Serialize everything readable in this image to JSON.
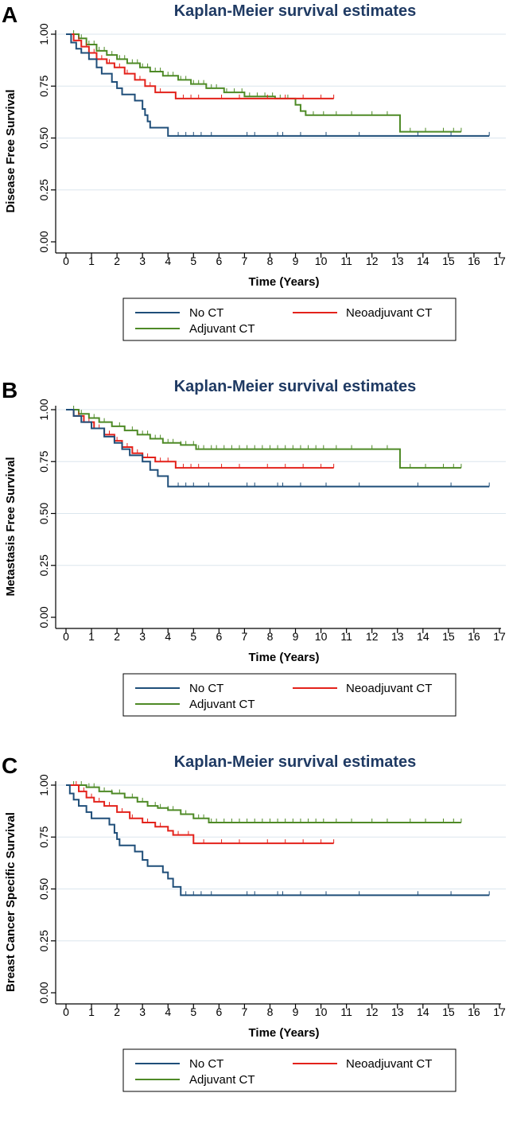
{
  "figure_labels": [
    "A",
    "B",
    "C"
  ],
  "legend_entries": [
    "No CT",
    "Neoadjuvant CT",
    "Adjuvant CT"
  ],
  "colors": {
    "no_ct": "#1f4e79",
    "neoadjuvant_ct": "#e3221b",
    "adjuvant_ct": "#4e8a26",
    "grid": "#dbe6ee",
    "axis": "#000000"
  },
  "chart_data": [
    {
      "type": "line",
      "panel": "A",
      "title": "Kaplan-Meier survival estimates",
      "xlabel": "Time (Years)",
      "ylabel": "Disease Free Survival",
      "xlim": [
        0,
        17
      ],
      "ylim": [
        0,
        1
      ],
      "xticks": [
        "0",
        "1",
        "2",
        "3",
        "4",
        "5",
        "6",
        "7",
        "8",
        "9",
        "10",
        "11",
        "12",
        "13",
        "14",
        "15",
        "16",
        "17"
      ],
      "yticks": [
        "0.00",
        "0.25",
        "0.50",
        "0.75",
        "1.00"
      ],
      "grid": true,
      "legend": "bottom",
      "series": [
        {
          "name": "No CT",
          "color": "#1f4e79",
          "steps": [
            [
              0,
              1.0
            ],
            [
              0.2,
              0.96
            ],
            [
              0.4,
              0.93
            ],
            [
              0.6,
              0.91
            ],
            [
              0.9,
              0.88
            ],
            [
              1.2,
              0.84
            ],
            [
              1.4,
              0.81
            ],
            [
              1.8,
              0.77
            ],
            [
              2.0,
              0.74
            ],
            [
              2.2,
              0.71
            ],
            [
              2.7,
              0.68
            ],
            [
              3.0,
              0.64
            ],
            [
              3.1,
              0.61
            ],
            [
              3.2,
              0.58
            ],
            [
              3.3,
              0.55
            ],
            [
              4.0,
              0.51
            ],
            [
              16.6,
              0.51
            ]
          ],
          "censored": [
            4.4,
            4.7,
            5.0,
            5.3,
            5.7,
            7.1,
            7.4,
            8.3,
            8.5,
            9.2,
            10.2,
            11.5,
            13.8,
            15.1,
            16.6
          ]
        },
        {
          "name": "Neoadjuvant CT",
          "color": "#e3221b",
          "steps": [
            [
              0,
              1.0
            ],
            [
              0.3,
              0.97
            ],
            [
              0.6,
              0.94
            ],
            [
              0.9,
              0.91
            ],
            [
              1.2,
              0.88
            ],
            [
              1.6,
              0.86
            ],
            [
              1.9,
              0.84
            ],
            [
              2.3,
              0.81
            ],
            [
              2.7,
              0.78
            ],
            [
              3.1,
              0.75
            ],
            [
              3.5,
              0.72
            ],
            [
              4.3,
              0.69
            ],
            [
              10.5,
              0.69
            ]
          ],
          "censored": [
            0.5,
            0.8,
            1.1,
            1.4,
            1.7,
            2.1,
            2.4,
            2.9,
            3.3,
            3.7,
            4.6,
            4.9,
            5.2,
            6.1,
            6.8,
            7.9,
            8.6,
            9.3,
            10.0,
            10.5
          ]
        },
        {
          "name": "Adjuvant CT",
          "color": "#4e8a26",
          "steps": [
            [
              0,
              1.0
            ],
            [
              0.5,
              0.98
            ],
            [
              0.8,
              0.95
            ],
            [
              1.2,
              0.92
            ],
            [
              1.6,
              0.9
            ],
            [
              2.0,
              0.88
            ],
            [
              2.4,
              0.86
            ],
            [
              2.9,
              0.84
            ],
            [
              3.3,
              0.82
            ],
            [
              3.8,
              0.8
            ],
            [
              4.4,
              0.78
            ],
            [
              4.9,
              0.76
            ],
            [
              5.5,
              0.74
            ],
            [
              6.2,
              0.72
            ],
            [
              7.0,
              0.7
            ],
            [
              8.2,
              0.69
            ],
            [
              9.0,
              0.66
            ],
            [
              9.2,
              0.63
            ],
            [
              9.4,
              0.61
            ],
            [
              13.1,
              0.53
            ],
            [
              15.5,
              0.53
            ]
          ],
          "censored": [
            0.3,
            0.6,
            0.9,
            1.1,
            1.3,
            1.5,
            1.8,
            2.1,
            2.3,
            2.6,
            2.8,
            3.0,
            3.2,
            3.5,
            3.7,
            4.0,
            4.2,
            4.5,
            4.7,
            5.0,
            5.2,
            5.4,
            5.7,
            5.9,
            6.3,
            6.6,
            6.9,
            7.2,
            7.5,
            7.8,
            8.1,
            8.4,
            8.7,
            9.7,
            10.1,
            10.6,
            11.2,
            12.0,
            12.6,
            13.5,
            14.1,
            14.8,
            15.2,
            15.5
          ]
        }
      ]
    },
    {
      "type": "line",
      "panel": "B",
      "title": "Kaplan-Meier survival estimates",
      "xlabel": "Time (Years)",
      "ylabel": "Metastasis Free Survival",
      "xlim": [
        0,
        17
      ],
      "ylim": [
        0,
        1
      ],
      "xticks": [
        "0",
        "1",
        "2",
        "3",
        "4",
        "5",
        "6",
        "7",
        "8",
        "9",
        "10",
        "11",
        "12",
        "13",
        "14",
        "15",
        "16",
        "17"
      ],
      "yticks": [
        "0.00",
        "0.25",
        "0.50",
        "0.75",
        "1.00"
      ],
      "grid": true,
      "legend": "bottom",
      "series": [
        {
          "name": "No CT",
          "color": "#1f4e79",
          "steps": [
            [
              0,
              1.0
            ],
            [
              0.3,
              0.97
            ],
            [
              0.6,
              0.94
            ],
            [
              1.0,
              0.91
            ],
            [
              1.5,
              0.87
            ],
            [
              1.9,
              0.84
            ],
            [
              2.2,
              0.81
            ],
            [
              2.5,
              0.78
            ],
            [
              3.0,
              0.75
            ],
            [
              3.3,
              0.71
            ],
            [
              3.6,
              0.68
            ],
            [
              4.0,
              0.63
            ],
            [
              16.6,
              0.63
            ]
          ],
          "censored": [
            4.4,
            4.7,
            5.0,
            5.6,
            7.1,
            7.4,
            8.3,
            8.5,
            9.2,
            10.2,
            11.5,
            13.8,
            15.1,
            16.6
          ]
        },
        {
          "name": "Neoadjuvant CT",
          "color": "#e3221b",
          "steps": [
            [
              0,
              1.0
            ],
            [
              0.3,
              0.97
            ],
            [
              0.7,
              0.94
            ],
            [
              1.1,
              0.91
            ],
            [
              1.5,
              0.88
            ],
            [
              1.9,
              0.85
            ],
            [
              2.2,
              0.82
            ],
            [
              2.6,
              0.79
            ],
            [
              3.0,
              0.77
            ],
            [
              3.5,
              0.75
            ],
            [
              4.3,
              0.72
            ],
            [
              10.5,
              0.72
            ]
          ],
          "censored": [
            0.5,
            0.9,
            1.3,
            1.7,
            2.0,
            2.4,
            2.8,
            3.2,
            3.7,
            4.0,
            4.6,
            4.9,
            5.2,
            6.1,
            6.8,
            7.9,
            8.6,
            9.3,
            10.0,
            10.5
          ]
        },
        {
          "name": "Adjuvant CT",
          "color": "#4e8a26",
          "steps": [
            [
              0,
              1.0
            ],
            [
              0.5,
              0.98
            ],
            [
              0.9,
              0.96
            ],
            [
              1.3,
              0.94
            ],
            [
              1.8,
              0.92
            ],
            [
              2.3,
              0.9
            ],
            [
              2.8,
              0.88
            ],
            [
              3.3,
              0.86
            ],
            [
              3.8,
              0.84
            ],
            [
              4.5,
              0.83
            ],
            [
              5.1,
              0.81
            ],
            [
              13.1,
              0.72
            ],
            [
              15.5,
              0.72
            ]
          ],
          "censored": [
            0.3,
            0.6,
            0.9,
            1.1,
            1.3,
            1.5,
            1.8,
            2.1,
            2.3,
            2.6,
            2.8,
            3.0,
            3.2,
            3.5,
            3.7,
            4.0,
            4.2,
            4.5,
            4.7,
            5.0,
            5.2,
            5.4,
            5.7,
            5.9,
            6.2,
            6.5,
            6.8,
            7.1,
            7.4,
            7.7,
            8.0,
            8.3,
            8.6,
            8.9,
            9.2,
            9.5,
            9.8,
            10.1,
            10.6,
            11.2,
            12.0,
            12.6,
            13.5,
            14.1,
            14.8,
            15.2,
            15.5
          ]
        }
      ]
    },
    {
      "type": "line",
      "panel": "C",
      "title": "Kaplan-Meier survival estimates",
      "xlabel": "Time (Years)",
      "ylabel": "Breast Cancer Specific Survival",
      "xlim": [
        0,
        17
      ],
      "ylim": [
        0,
        1
      ],
      "xticks": [
        "0",
        "1",
        "2",
        "3",
        "4",
        "5",
        "6",
        "7",
        "8",
        "9",
        "10",
        "11",
        "12",
        "13",
        "14",
        "15",
        "16",
        "17"
      ],
      "yticks": [
        "0.00",
        "0.25",
        "0.50",
        "0.75",
        "1.00"
      ],
      "grid": true,
      "legend": "bottom",
      "series": [
        {
          "name": "No CT",
          "color": "#1f4e79",
          "steps": [
            [
              0,
              1.0
            ],
            [
              0.15,
              0.96
            ],
            [
              0.3,
              0.93
            ],
            [
              0.5,
              0.9
            ],
            [
              0.8,
              0.87
            ],
            [
              1.0,
              0.84
            ],
            [
              1.7,
              0.81
            ],
            [
              1.9,
              0.77
            ],
            [
              2.0,
              0.74
            ],
            [
              2.1,
              0.71
            ],
            [
              2.7,
              0.68
            ],
            [
              3.0,
              0.64
            ],
            [
              3.2,
              0.61
            ],
            [
              3.8,
              0.58
            ],
            [
              4.0,
              0.55
            ],
            [
              4.2,
              0.51
            ],
            [
              4.5,
              0.47
            ],
            [
              16.6,
              0.47
            ]
          ],
          "censored": [
            4.7,
            5.0,
            5.3,
            5.7,
            7.1,
            7.4,
            8.3,
            8.5,
            9.2,
            10.2,
            11.5,
            13.8,
            15.1,
            16.6
          ]
        },
        {
          "name": "Neoadjuvant CT",
          "color": "#e3221b",
          "steps": [
            [
              0,
              1.0
            ],
            [
              0.5,
              0.97
            ],
            [
              0.8,
              0.94
            ],
            [
              1.1,
              0.92
            ],
            [
              1.5,
              0.9
            ],
            [
              2.0,
              0.87
            ],
            [
              2.5,
              0.84
            ],
            [
              3.0,
              0.82
            ],
            [
              3.5,
              0.8
            ],
            [
              4.0,
              0.78
            ],
            [
              4.2,
              0.76
            ],
            [
              5.0,
              0.72
            ],
            [
              10.5,
              0.72
            ]
          ],
          "censored": [
            0.4,
            0.7,
            1.0,
            1.3,
            1.7,
            2.2,
            2.6,
            3.2,
            3.7,
            4.4,
            4.8,
            5.4,
            6.1,
            6.8,
            7.9,
            8.6,
            9.3,
            10.0,
            10.5
          ]
        },
        {
          "name": "Adjuvant CT",
          "color": "#4e8a26",
          "steps": [
            [
              0,
              1.0
            ],
            [
              0.8,
              0.99
            ],
            [
              1.3,
              0.97
            ],
            [
              1.8,
              0.96
            ],
            [
              2.3,
              0.94
            ],
            [
              2.8,
              0.92
            ],
            [
              3.2,
              0.9
            ],
            [
              3.6,
              0.89
            ],
            [
              4.0,
              0.88
            ],
            [
              4.5,
              0.86
            ],
            [
              5.0,
              0.84
            ],
            [
              5.6,
              0.82
            ],
            [
              15.5,
              0.82
            ]
          ],
          "censored": [
            0.3,
            0.6,
            0.9,
            1.1,
            1.3,
            1.5,
            1.8,
            2.1,
            2.3,
            2.6,
            2.8,
            3.0,
            3.2,
            3.5,
            3.7,
            4.0,
            4.2,
            4.5,
            4.7,
            5.0,
            5.2,
            5.4,
            5.7,
            5.9,
            6.2,
            6.5,
            6.8,
            7.1,
            7.4,
            7.7,
            8.0,
            8.3,
            8.6,
            8.9,
            9.2,
            9.5,
            9.8,
            10.1,
            10.6,
            11.2,
            12.0,
            12.6,
            13.5,
            14.1,
            14.8,
            15.2,
            15.5
          ]
        }
      ]
    }
  ]
}
